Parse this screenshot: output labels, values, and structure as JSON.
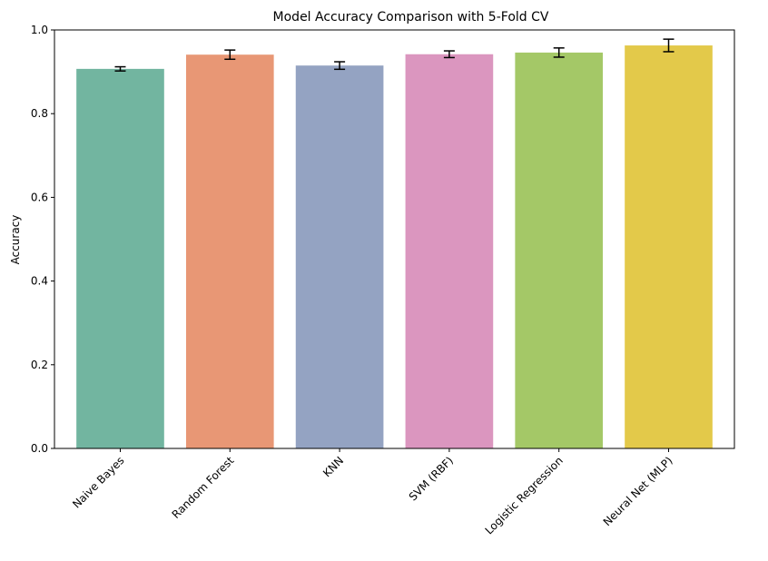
{
  "chart_data": {
    "type": "bar",
    "title": "Model Accuracy Comparison with 5-Fold CV",
    "xlabel": "",
    "ylabel": "Accuracy",
    "ylim": [
      0,
      1.0
    ],
    "yticks": [
      "0.0",
      "0.2",
      "0.4",
      "0.6",
      "0.8",
      "1.0"
    ],
    "categories": [
      "Naive Bayes",
      "Random Forest",
      "KNN",
      "SVM (RBF)",
      "Logistic Regression",
      "Neural Net (MLP)"
    ],
    "values": [
      0.907,
      0.941,
      0.915,
      0.942,
      0.946,
      0.963
    ],
    "errors": [
      0.005,
      0.011,
      0.009,
      0.008,
      0.011,
      0.015
    ],
    "colors": [
      "#72b5a0",
      "#e89775",
      "#94a3c2",
      "#db96bf",
      "#a4c867",
      "#e3c94a"
    ],
    "grid": false,
    "legend": "none"
  }
}
